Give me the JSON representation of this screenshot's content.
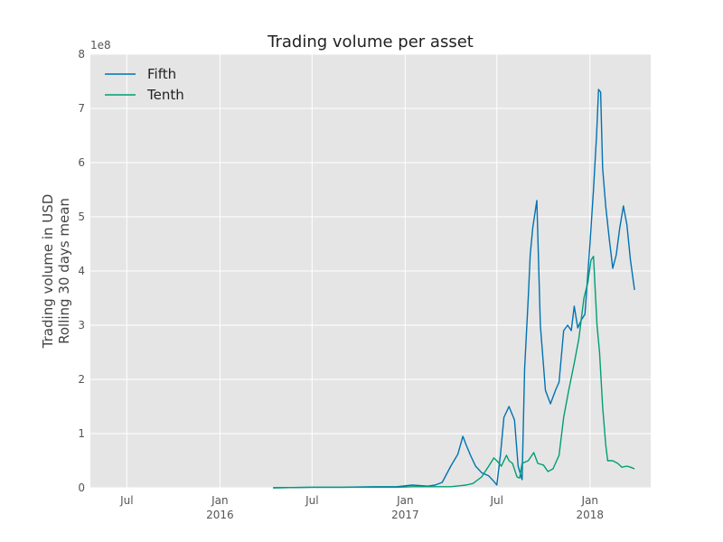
{
  "chart_data": {
    "type": "line",
    "title": "Trading volume per asset",
    "ylabel_lines": [
      "Trading volume in USD",
      "Rolling 30 days mean"
    ],
    "y_offset_label": "1e8",
    "ylim": [
      0,
      8
    ],
    "xlim": [
      "2015-04-20",
      "2018-05-01"
    ],
    "grid": true,
    "legend_position": "top-left",
    "yticks": [
      0,
      1,
      2,
      3,
      4,
      5,
      6,
      7,
      8
    ],
    "xticks": [
      {
        "date": "2015-07-01",
        "label": "Jul",
        "year": ""
      },
      {
        "date": "2016-01-01",
        "label": "Jan",
        "year": "2016"
      },
      {
        "date": "2016-07-01",
        "label": "Jul",
        "year": ""
      },
      {
        "date": "2017-01-01",
        "label": "Jan",
        "year": "2017"
      },
      {
        "date": "2017-07-01",
        "label": "Jul",
        "year": ""
      },
      {
        "date": "2018-01-01",
        "label": "Jan",
        "year": "2018"
      }
    ],
    "series": [
      {
        "name": "Fifth",
        "color": "#0072B2",
        "points": [
          [
            "2016-04-15",
            0
          ],
          [
            "2016-07-01",
            0.01
          ],
          [
            "2016-09-01",
            0.01
          ],
          [
            "2016-11-01",
            0.02
          ],
          [
            "2016-12-15",
            0.02
          ],
          [
            "2017-01-15",
            0.05
          ],
          [
            "2017-02-15",
            0.03
          ],
          [
            "2017-03-01",
            0.05
          ],
          [
            "2017-03-15",
            0.1
          ],
          [
            "2017-04-01",
            0.4
          ],
          [
            "2017-04-15",
            0.62
          ],
          [
            "2017-04-25",
            0.95
          ],
          [
            "2017-05-01",
            0.8
          ],
          [
            "2017-05-10",
            0.6
          ],
          [
            "2017-05-20",
            0.4
          ],
          [
            "2017-06-01",
            0.28
          ],
          [
            "2017-06-15",
            0.22
          ],
          [
            "2017-06-25",
            0.12
          ],
          [
            "2017-07-01",
            0.05
          ],
          [
            "2017-07-08",
            0.6
          ],
          [
            "2017-07-15",
            1.3
          ],
          [
            "2017-07-25",
            1.5
          ],
          [
            "2017-08-05",
            1.25
          ],
          [
            "2017-08-12",
            0.4
          ],
          [
            "2017-08-20",
            0.15
          ],
          [
            "2017-08-25",
            2.2
          ],
          [
            "2017-09-01",
            3.5
          ],
          [
            "2017-09-05",
            4.3
          ],
          [
            "2017-09-10",
            4.8
          ],
          [
            "2017-09-18",
            5.3
          ],
          [
            "2017-09-25",
            3.0
          ],
          [
            "2017-10-05",
            1.8
          ],
          [
            "2017-10-15",
            1.55
          ],
          [
            "2017-10-25",
            1.8
          ],
          [
            "2017-11-01",
            1.95
          ],
          [
            "2017-11-10",
            2.9
          ],
          [
            "2017-11-18",
            3.0
          ],
          [
            "2017-11-25",
            2.9
          ],
          [
            "2017-12-01",
            3.35
          ],
          [
            "2017-12-08",
            2.95
          ],
          [
            "2017-12-15",
            3.1
          ],
          [
            "2017-12-22",
            3.2
          ],
          [
            "2018-01-01",
            4.5
          ],
          [
            "2018-01-08",
            5.5
          ],
          [
            "2018-01-14",
            6.5
          ],
          [
            "2018-01-18",
            7.35
          ],
          [
            "2018-01-22",
            7.3
          ],
          [
            "2018-01-26",
            5.9
          ],
          [
            "2018-02-01",
            5.2
          ],
          [
            "2018-02-08",
            4.6
          ],
          [
            "2018-02-15",
            4.05
          ],
          [
            "2018-02-22",
            4.3
          ],
          [
            "2018-03-01",
            4.8
          ],
          [
            "2018-03-08",
            5.2
          ],
          [
            "2018-03-15",
            4.85
          ],
          [
            "2018-03-22",
            4.2
          ],
          [
            "2018-03-30",
            3.65
          ]
        ]
      },
      {
        "name": "Tenth",
        "color": "#009E73",
        "points": [
          [
            "2016-04-15",
            0
          ],
          [
            "2016-07-01",
            0.01
          ],
          [
            "2016-09-01",
            0.01
          ],
          [
            "2016-11-01",
            0.01
          ],
          [
            "2016-12-15",
            0.01
          ],
          [
            "2017-01-15",
            0.02
          ],
          [
            "2017-03-01",
            0.02
          ],
          [
            "2017-04-01",
            0.02
          ],
          [
            "2017-05-01",
            0.05
          ],
          [
            "2017-05-15",
            0.08
          ],
          [
            "2017-06-01",
            0.2
          ],
          [
            "2017-06-15",
            0.4
          ],
          [
            "2017-06-25",
            0.55
          ],
          [
            "2017-07-01",
            0.5
          ],
          [
            "2017-07-10",
            0.4
          ],
          [
            "2017-07-20",
            0.6
          ],
          [
            "2017-07-25",
            0.5
          ],
          [
            "2017-08-01",
            0.45
          ],
          [
            "2017-08-10",
            0.2
          ],
          [
            "2017-08-15",
            0.18
          ],
          [
            "2017-08-20",
            0.45
          ],
          [
            "2017-09-01",
            0.5
          ],
          [
            "2017-09-12",
            0.65
          ],
          [
            "2017-09-20",
            0.45
          ],
          [
            "2017-10-01",
            0.42
          ],
          [
            "2017-10-10",
            0.3
          ],
          [
            "2017-10-20",
            0.35
          ],
          [
            "2017-11-01",
            0.6
          ],
          [
            "2017-11-10",
            1.3
          ],
          [
            "2017-11-20",
            1.8
          ],
          [
            "2017-12-01",
            2.3
          ],
          [
            "2017-12-10",
            2.75
          ],
          [
            "2017-12-20",
            3.5
          ],
          [
            "2017-12-28",
            3.8
          ],
          [
            "2018-01-03",
            4.2
          ],
          [
            "2018-01-08",
            4.27
          ],
          [
            "2018-01-15",
            3.0
          ],
          [
            "2018-01-20",
            2.5
          ],
          [
            "2018-01-26",
            1.5
          ],
          [
            "2018-02-01",
            0.8
          ],
          [
            "2018-02-05",
            0.5
          ],
          [
            "2018-02-15",
            0.5
          ],
          [
            "2018-02-25",
            0.45
          ],
          [
            "2018-03-05",
            0.38
          ],
          [
            "2018-03-15",
            0.4
          ],
          [
            "2018-03-22",
            0.38
          ],
          [
            "2018-03-30",
            0.35
          ]
        ]
      }
    ]
  }
}
